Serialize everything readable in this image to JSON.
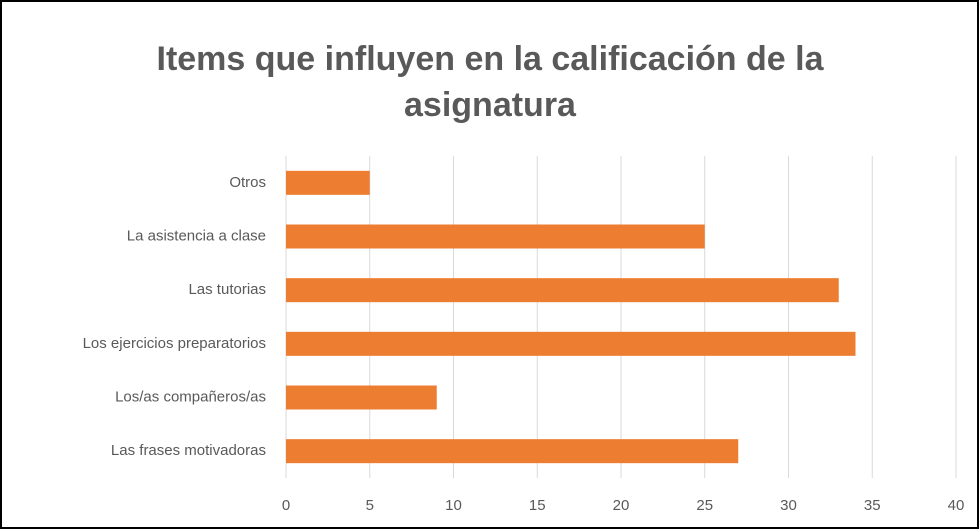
{
  "chart_data": {
    "type": "bar",
    "orientation": "horizontal",
    "title": "Items que influyen en la calificación de la asignatura",
    "categories": [
      "Otros",
      "La asistencia a clase",
      "Las tutorias",
      "Los ejercicios preparatorios",
      "Los/as compañeros/as",
      "Las frases motivadoras"
    ],
    "values": [
      5,
      25,
      33,
      34,
      9,
      27
    ],
    "color": "#ed7d31",
    "xlim": [
      0,
      40
    ],
    "xticks": [
      0,
      5,
      10,
      15,
      20,
      25,
      30,
      35,
      40
    ],
    "grid": true
  }
}
